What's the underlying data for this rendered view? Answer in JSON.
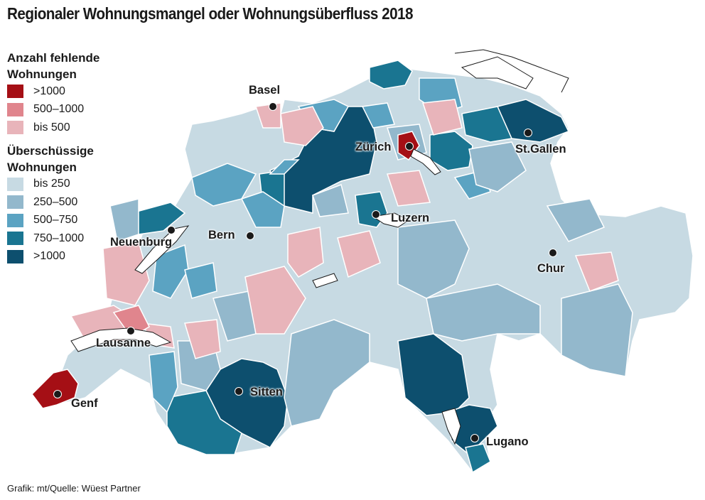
{
  "title": "Regionaler Wohnungsmangel oder Wohnungsüberfluss 2018",
  "legend": {
    "shortage": {
      "heading": "Anzahl fehlende\nWohnungen",
      "items": [
        {
          "label": ">1000",
          "color": "#a50f15"
        },
        {
          "label": "500–1000",
          "color": "#e0858d"
        },
        {
          "label": "bis 500",
          "color": "#e8b4ba"
        }
      ]
    },
    "surplus": {
      "heading": "Überschüssige\nWohnungen",
      "items": [
        {
          "label": "bis 250",
          "color": "#c7dae3"
        },
        {
          "label": "250–500",
          "color": "#93b8cc"
        },
        {
          "label": "500–750",
          "color": "#5ba3c2"
        },
        {
          "label": "750–1000",
          "color": "#1a7591"
        },
        {
          "label": ">1000",
          "color": "#0d4f6e"
        }
      ]
    }
  },
  "cities": [
    {
      "name": "Basel"
    },
    {
      "name": "Zürich"
    },
    {
      "name": "St.Gallen"
    },
    {
      "name": "Luzern"
    },
    {
      "name": "Bern"
    },
    {
      "name": "Neuenburg"
    },
    {
      "name": "Chur"
    },
    {
      "name": "Lausanne"
    },
    {
      "name": "Genf"
    },
    {
      "name": "Sitten"
    },
    {
      "name": "Lugano"
    }
  ],
  "source": "Grafik: mt/Quelle: Wüest Partner"
}
